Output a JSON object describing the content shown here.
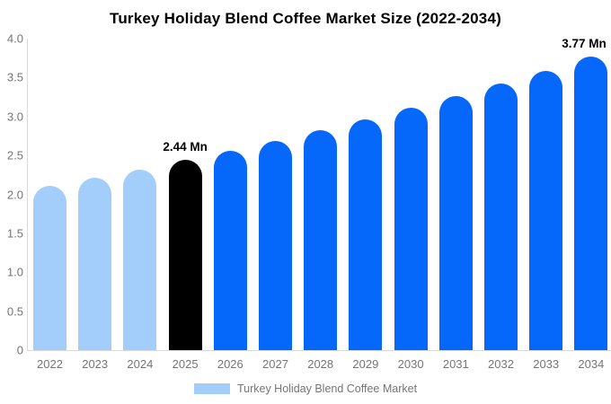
{
  "title": "Turkey Holiday Blend Coffee Market Size (2022-2034)",
  "legend": {
    "label": "Turkey Holiday Blend Coffee Market"
  },
  "colors": {
    "past_bar": "#a3cdfa",
    "highlight_bar": "#000000",
    "forecast_bar": "#0568fb",
    "axis_line": "#d9d9d9",
    "tick_label": "#757575",
    "annotation_text": "#000000",
    "legend_swatch": "#a3cdfa",
    "legend_text": "#757575",
    "title_text": "#000000"
  },
  "chart_data": {
    "type": "bar",
    "title": "Turkey Holiday Blend Coffee Market Size (2022-2034)",
    "unit": "Mn",
    "categories": [
      "2022",
      "2023",
      "2024",
      "2025",
      "2026",
      "2027",
      "2028",
      "2029",
      "2030",
      "2031",
      "2032",
      "2033",
      "2034"
    ],
    "values": [
      2.11,
      2.21,
      2.32,
      2.44,
      2.56,
      2.69,
      2.82,
      2.96,
      3.11,
      3.26,
      3.42,
      3.59,
      3.77
    ],
    "bar_styles": [
      "past",
      "past",
      "past",
      "highlight",
      "forecast",
      "forecast",
      "forecast",
      "forecast",
      "forecast",
      "forecast",
      "forecast",
      "forecast",
      "forecast"
    ],
    "data_labels": [
      {
        "category": "2025",
        "text": "2.44 Mn"
      },
      {
        "category": "2034",
        "text": "3.77 Mn"
      }
    ],
    "y_ticks": [
      "4.0",
      "3.5",
      "3.0",
      "2.5",
      "2.0",
      "1.5",
      "1.0",
      "0.5",
      "0"
    ],
    "y_tick_values": [
      4.0,
      3.5,
      3.0,
      2.5,
      2.0,
      1.5,
      1.0,
      0.5,
      0
    ],
    "ylim": [
      0,
      4
    ],
    "grid": false,
    "legend_entries": [
      "Turkey Holiday Blend Coffee Market"
    ],
    "legend_position": "bottom"
  }
}
